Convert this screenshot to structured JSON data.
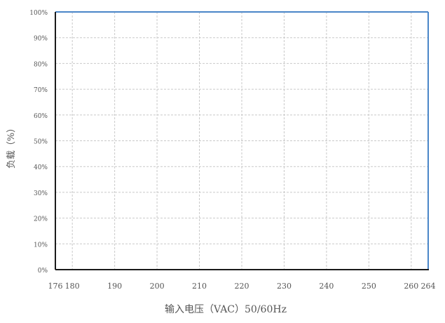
{
  "chart_data": {
    "type": "line",
    "title": "",
    "xlabel": "输入电压（VAC）50/60Hz",
    "ylabel": "负载（%）",
    "x_ticks": [
      176,
      180,
      190,
      200,
      210,
      220,
      230,
      240,
      250,
      260,
      264
    ],
    "y_ticks": [
      "0%",
      "10%",
      "20%",
      "30%",
      "40%",
      "50%",
      "60%",
      "70%",
      "80%",
      "90%",
      "100%"
    ],
    "xlim": [
      176,
      264
    ],
    "ylim": [
      0,
      100
    ],
    "grid": true,
    "series": [
      {
        "x": [
          176,
          264
        ],
        "y": [
          100,
          100
        ]
      }
    ],
    "colors": {
      "curve": "#4a86c8",
      "axes": "#1a1a1a",
      "grid": "#c9c9c9",
      "text": "#555555"
    }
  }
}
